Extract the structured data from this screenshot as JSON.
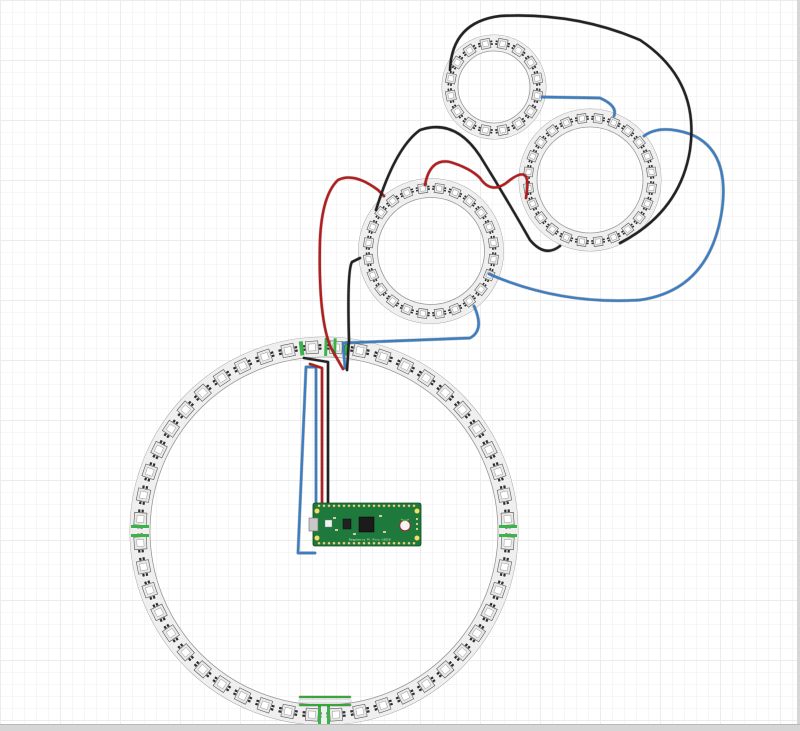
{
  "diagram": {
    "kind": "breadboard-wiring",
    "controller": {
      "name": "Raspberry Pi Pico",
      "board_text": "Raspberry Pi Pico ©2020",
      "color": "#1d7a3c",
      "logo_color": "#c7152d"
    },
    "rings": [
      {
        "id": "ring-48",
        "led_count": 48,
        "role": "large"
      },
      {
        "id": "ring-24",
        "led_count": 24,
        "role": "medium-left"
      },
      {
        "id": "ring-24b",
        "led_count": 24,
        "role": "medium-right"
      },
      {
        "id": "ring-16",
        "led_count": 16,
        "role": "small-top"
      }
    ],
    "wire_colors": {
      "power": "#b71c1c",
      "ground": "#222222",
      "data": "#3d7ec2",
      "joiner_green": "#39a43a",
      "joiner_white": "#f2f2f2"
    },
    "led_body_color": "#5a5a5a",
    "led_chip_color": "#e8e8e8",
    "pad_color": "#3bb34a"
  }
}
